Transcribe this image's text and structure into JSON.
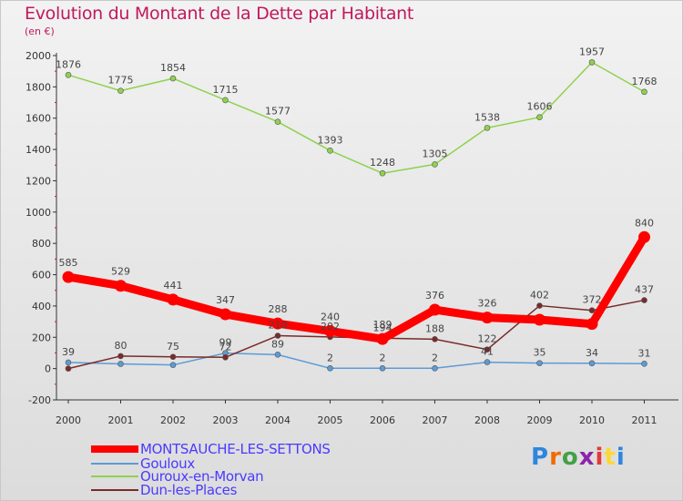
{
  "title": "Evolution du Montant de la Dette par Habitant",
  "subtitle": "(en €)",
  "logo": "Proxiti",
  "chart_data": {
    "type": "line",
    "title": "Evolution du Montant de la Dette par Habitant",
    "subtitle": "(en €)",
    "x": [
      2000,
      2001,
      2002,
      2003,
      2004,
      2005,
      2006,
      2007,
      2008,
      2009,
      2010,
      2011
    ],
    "y_ticks": [
      -200,
      0,
      200,
      400,
      600,
      800,
      1000,
      1200,
      1400,
      1600,
      1800,
      2000
    ],
    "ylim": [
      -200,
      2000
    ],
    "grid": false,
    "legend_position": "bottom-left",
    "series": [
      {
        "name": "MONTSAUCHE-LES-SETTONS",
        "color": "#ff0000",
        "values": [
          585,
          529,
          441,
          347,
          288,
          240,
          189,
          376,
          326,
          312,
          285,
          840
        ],
        "labels": [
          "585",
          "529",
          "441",
          "347",
          "288",
          "240",
          "189",
          "376",
          "326",
          "",
          "",
          "840"
        ]
      },
      {
        "name": "Gouloux",
        "color": "#5b9bd5",
        "values": [
          39,
          30,
          23,
          99,
          89,
          2,
          2,
          2,
          41,
          35,
          34,
          31
        ],
        "labels": [
          "39",
          "",
          "",
          "99",
          "89",
          "2",
          "2",
          "2",
          "41",
          "35",
          "34",
          "31"
        ]
      },
      {
        "name": "Ouroux-en-Morvan",
        "color": "#8fd14f",
        "values": [
          1876,
          1775,
          1854,
          1715,
          1577,
          1393,
          1248,
          1305,
          1538,
          1606,
          1957,
          1768
        ],
        "labels": [
          "1876",
          "1775",
          "1854",
          "1715",
          "1577",
          "1393",
          "1248",
          "1305",
          "1538",
          "1606",
          "1957",
          "1768"
        ]
      },
      {
        "name": "Dun-les-Places",
        "color": "#7a2a2a",
        "values": [
          0,
          80,
          75,
          72,
          210,
          202,
          194,
          188,
          122,
          402,
          372,
          437
        ],
        "labels": [
          "",
          "80",
          "75",
          "72",
          "210",
          "202",
          "194",
          "188",
          "122",
          "402",
          "372",
          "437"
        ]
      }
    ]
  },
  "colors": {
    "title": "#c2185b",
    "legend_text": "#4a3aff"
  }
}
